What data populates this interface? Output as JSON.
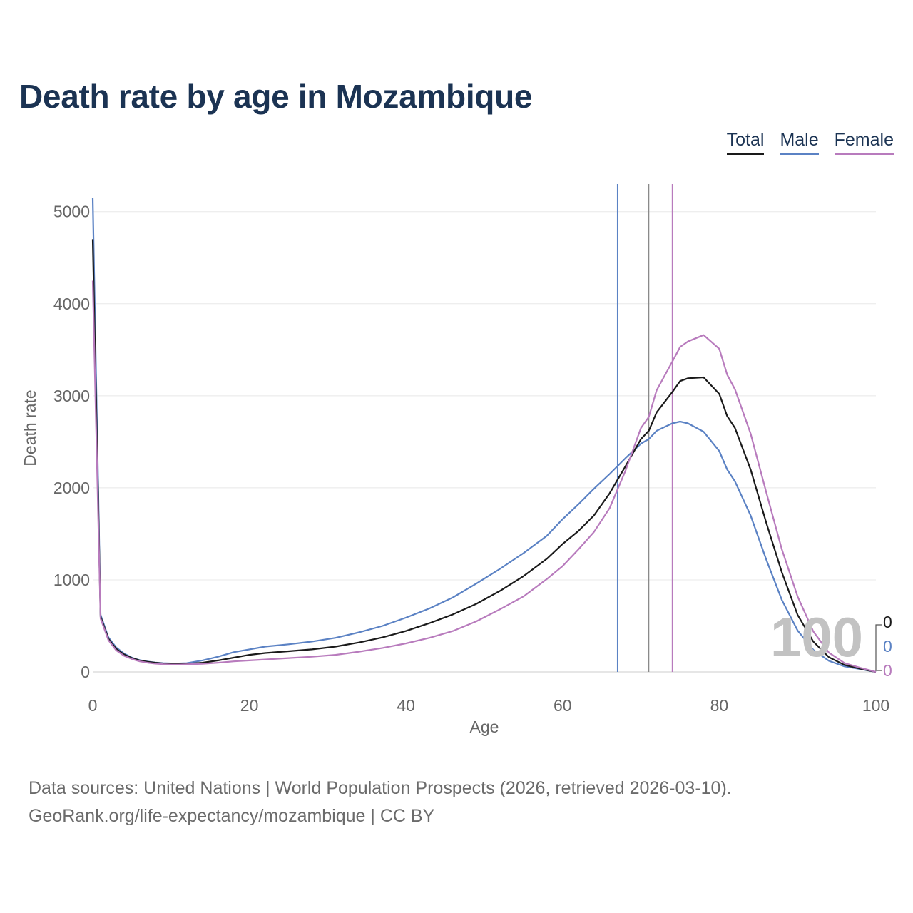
{
  "title": "Death rate by age in Mozambique",
  "legend": [
    {
      "label": "Total",
      "color": "#1a1a1a"
    },
    {
      "label": "Male",
      "color": "#5b82c4"
    },
    {
      "label": "Female",
      "color": "#b87bbd"
    }
  ],
  "footer": {
    "sources": "Data sources: United Nations | World Population Prospects (2026, retrieved 2026-03-10).",
    "attribution": "GeoRank.org/life-expectancy/mozambique | CC BY"
  },
  "chart_data": {
    "type": "line",
    "xlabel": "Age",
    "ylabel": "Death rate",
    "xlim": [
      0,
      100
    ],
    "ylim": [
      0,
      5300
    ],
    "x_ticks": [
      0,
      20,
      40,
      60,
      80,
      100
    ],
    "y_ticks": [
      0,
      1000,
      2000,
      3000,
      4000,
      5000
    ],
    "grid": true,
    "legend_position": "top-right",
    "watermark": "100",
    "end_labels": [
      "0",
      "0",
      "0"
    ],
    "vertical_markers": [
      {
        "series": "Male",
        "x": 67
      },
      {
        "series": "Total",
        "x": 71
      },
      {
        "series": "Female",
        "x": 74
      }
    ],
    "series": [
      {
        "name": "Total",
        "color": "#1a1a1a",
        "points": [
          [
            0,
            4700
          ],
          [
            1,
            600
          ],
          [
            2,
            360
          ],
          [
            3,
            250
          ],
          [
            4,
            190
          ],
          [
            5,
            150
          ],
          [
            6,
            125
          ],
          [
            7,
            110
          ],
          [
            8,
            100
          ],
          [
            9,
            92
          ],
          [
            10,
            88
          ],
          [
            11,
            87
          ],
          [
            12,
            88
          ],
          [
            14,
            100
          ],
          [
            16,
            125
          ],
          [
            18,
            155
          ],
          [
            20,
            185
          ],
          [
            22,
            205
          ],
          [
            25,
            225
          ],
          [
            28,
            245
          ],
          [
            31,
            275
          ],
          [
            34,
            320
          ],
          [
            37,
            375
          ],
          [
            40,
            445
          ],
          [
            43,
            530
          ],
          [
            46,
            625
          ],
          [
            49,
            740
          ],
          [
            52,
            880
          ],
          [
            55,
            1040
          ],
          [
            58,
            1230
          ],
          [
            60,
            1390
          ],
          [
            62,
            1530
          ],
          [
            64,
            1700
          ],
          [
            66,
            1940
          ],
          [
            68,
            2230
          ],
          [
            70,
            2530
          ],
          [
            71,
            2620
          ],
          [
            72,
            2820
          ],
          [
            74,
            3040
          ],
          [
            75,
            3160
          ],
          [
            76,
            3190
          ],
          [
            78,
            3200
          ],
          [
            80,
            3020
          ],
          [
            81,
            2780
          ],
          [
            82,
            2650
          ],
          [
            84,
            2200
          ],
          [
            86,
            1620
          ],
          [
            88,
            1080
          ],
          [
            90,
            620
          ],
          [
            92,
            330
          ],
          [
            94,
            160
          ],
          [
            96,
            75
          ],
          [
            98,
            35
          ],
          [
            100,
            0
          ]
        ]
      },
      {
        "name": "Male",
        "color": "#5b82c4",
        "points": [
          [
            0,
            5150
          ],
          [
            1,
            620
          ],
          [
            2,
            375
          ],
          [
            3,
            265
          ],
          [
            4,
            200
          ],
          [
            5,
            155
          ],
          [
            6,
            128
          ],
          [
            7,
            112
          ],
          [
            8,
            102
          ],
          [
            9,
            95
          ],
          [
            10,
            92
          ],
          [
            11,
            92
          ],
          [
            12,
            95
          ],
          [
            14,
            125
          ],
          [
            16,
            165
          ],
          [
            18,
            215
          ],
          [
            20,
            245
          ],
          [
            22,
            275
          ],
          [
            25,
            300
          ],
          [
            28,
            330
          ],
          [
            31,
            370
          ],
          [
            34,
            430
          ],
          [
            37,
            500
          ],
          [
            40,
            590
          ],
          [
            43,
            690
          ],
          [
            46,
            810
          ],
          [
            49,
            960
          ],
          [
            52,
            1120
          ],
          [
            55,
            1290
          ],
          [
            58,
            1480
          ],
          [
            60,
            1660
          ],
          [
            62,
            1820
          ],
          [
            64,
            1990
          ],
          [
            66,
            2150
          ],
          [
            68,
            2320
          ],
          [
            70,
            2480
          ],
          [
            71,
            2530
          ],
          [
            72,
            2620
          ],
          [
            74,
            2700
          ],
          [
            75,
            2720
          ],
          [
            76,
            2700
          ],
          [
            78,
            2610
          ],
          [
            80,
            2400
          ],
          [
            81,
            2200
          ],
          [
            82,
            2070
          ],
          [
            84,
            1700
          ],
          [
            86,
            1220
          ],
          [
            88,
            780
          ],
          [
            90,
            450
          ],
          [
            92,
            240
          ],
          [
            94,
            120
          ],
          [
            96,
            60
          ],
          [
            98,
            30
          ],
          [
            100,
            0
          ]
        ]
      },
      {
        "name": "Female",
        "color": "#b87bbd",
        "points": [
          [
            0,
            4250
          ],
          [
            1,
            580
          ],
          [
            2,
            345
          ],
          [
            3,
            235
          ],
          [
            4,
            175
          ],
          [
            5,
            140
          ],
          [
            6,
            115
          ],
          [
            7,
            100
          ],
          [
            8,
            90
          ],
          [
            9,
            84
          ],
          [
            10,
            80
          ],
          [
            11,
            80
          ],
          [
            12,
            82
          ],
          [
            14,
            88
          ],
          [
            16,
            100
          ],
          [
            18,
            115
          ],
          [
            20,
            125
          ],
          [
            22,
            135
          ],
          [
            25,
            150
          ],
          [
            28,
            165
          ],
          [
            31,
            185
          ],
          [
            34,
            220
          ],
          [
            37,
            260
          ],
          [
            40,
            310
          ],
          [
            43,
            370
          ],
          [
            46,
            445
          ],
          [
            49,
            550
          ],
          [
            52,
            680
          ],
          [
            55,
            820
          ],
          [
            58,
            1010
          ],
          [
            60,
            1150
          ],
          [
            62,
            1330
          ],
          [
            64,
            1520
          ],
          [
            66,
            1780
          ],
          [
            68,
            2180
          ],
          [
            70,
            2650
          ],
          [
            71,
            2770
          ],
          [
            72,
            3060
          ],
          [
            74,
            3370
          ],
          [
            75,
            3530
          ],
          [
            76,
            3590
          ],
          [
            78,
            3660
          ],
          [
            80,
            3510
          ],
          [
            81,
            3230
          ],
          [
            82,
            3070
          ],
          [
            84,
            2590
          ],
          [
            86,
            1950
          ],
          [
            88,
            1330
          ],
          [
            90,
            820
          ],
          [
            92,
            440
          ],
          [
            94,
            210
          ],
          [
            96,
            95
          ],
          [
            98,
            45
          ],
          [
            100,
            0
          ]
        ]
      }
    ]
  }
}
